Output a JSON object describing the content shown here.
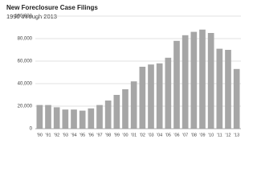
{
  "chart_data": {
    "type": "bar",
    "title": "New Foreclosure Case Filings",
    "subtitle": "1990 through 2013",
    "categories": [
      "'90",
      "'91",
      "'92",
      "'93",
      "'94",
      "'95",
      "'96",
      "'97",
      "'98",
      "'99",
      "'00",
      "'01",
      "'02",
      "'03",
      "'04",
      "'05",
      "'06",
      "'07",
      "'08",
      "'09",
      "'10",
      "'11",
      "'12",
      "'13"
    ],
    "values": [
      21000,
      21000,
      19000,
      17000,
      17000,
      16000,
      18000,
      21000,
      25000,
      30000,
      35000,
      42000,
      55000,
      57000,
      58000,
      63000,
      78000,
      83000,
      86000,
      88000,
      85000,
      71000,
      70000,
      53000
    ],
    "color": "#a6a6a6",
    "ylim": [
      0,
      100000
    ],
    "yticks": [
      0,
      {
        "value": 20000,
        "label": "20,000"
      },
      {
        "value": 40000,
        "label": "40,000"
      },
      {
        "value": 60000,
        "label": "60,000"
      },
      {
        "value": 80000,
        "label": "80,000"
      },
      {
        "value": 100000,
        "label": "100,000"
      }
    ],
    "grid": true
  }
}
